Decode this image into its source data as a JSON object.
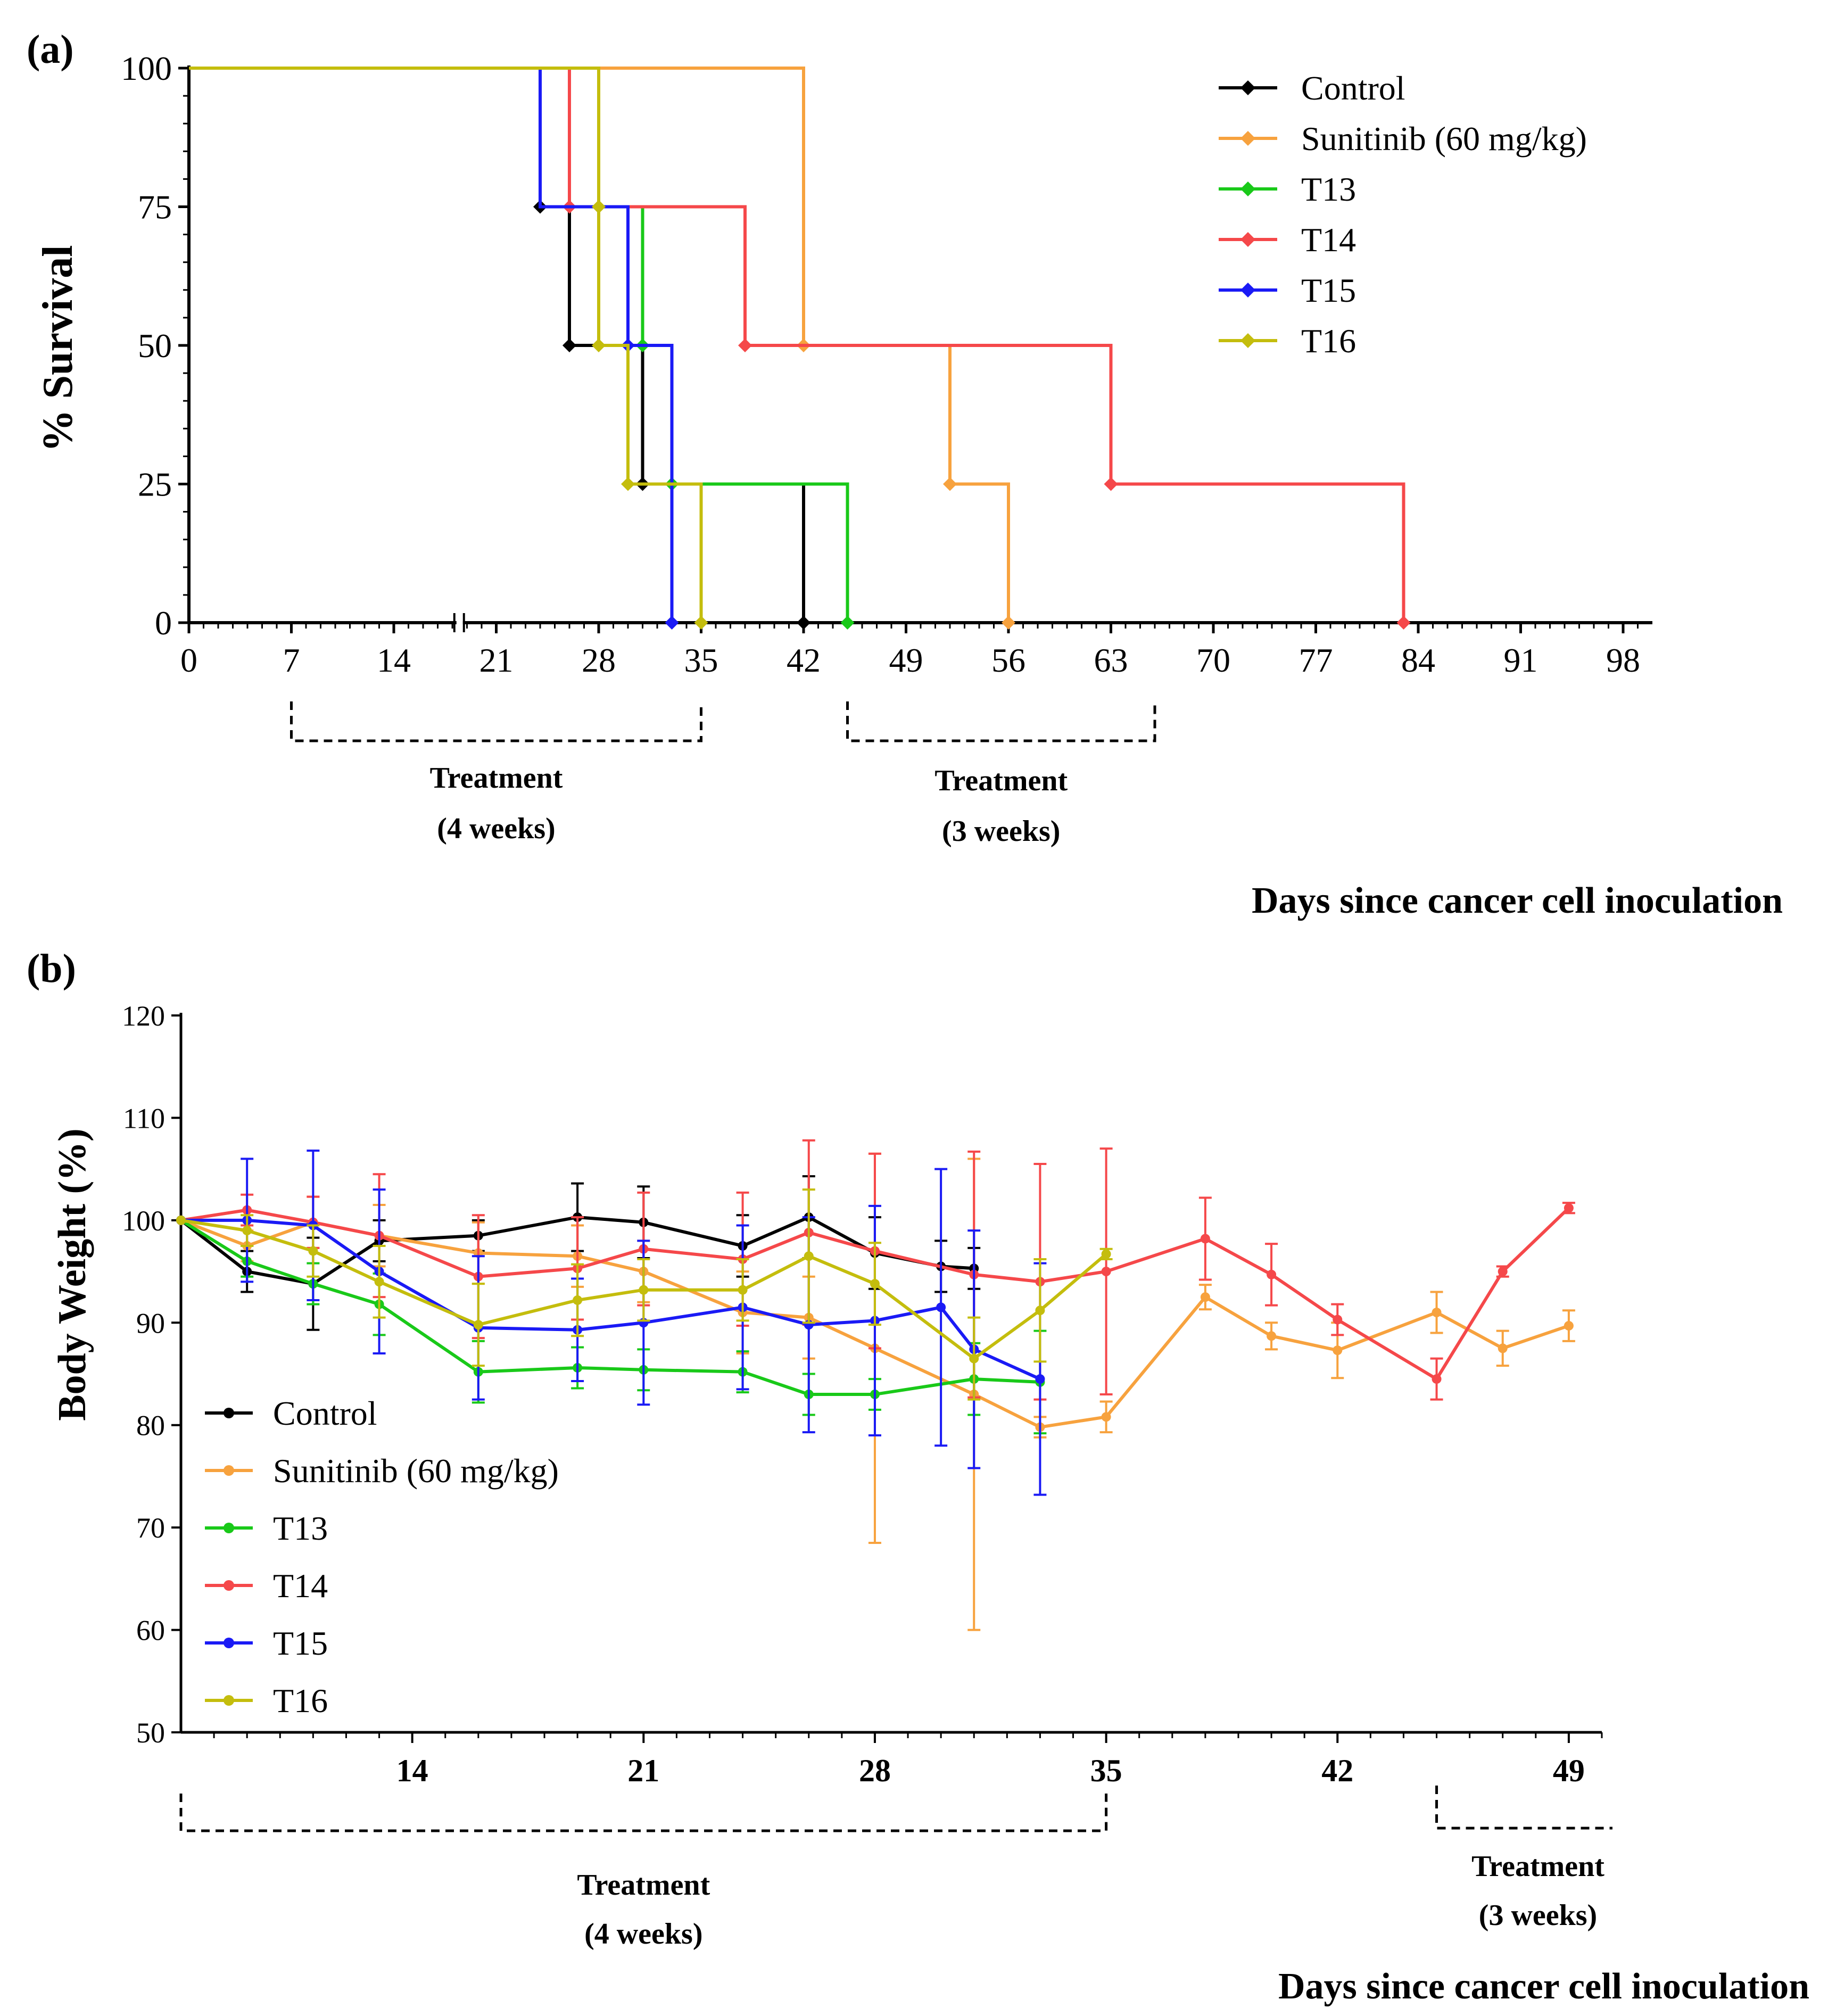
{
  "chart_data": [
    {
      "panel": "(a)",
      "type": "line",
      "subtype": "kaplan-meier survival",
      "title": "",
      "xlabel": "Days since cancer cell inoculation",
      "ylabel": "% Survival",
      "xlim": [
        0,
        100
      ],
      "ylim": [
        0,
        100
      ],
      "x_ticks": [
        0,
        7,
        14,
        21,
        28,
        35,
        42,
        49,
        56,
        63,
        70,
        77,
        84,
        91,
        98
      ],
      "y_ticks": [
        0,
        25,
        50,
        75,
        100
      ],
      "legend_position": "top-right",
      "series": [
        {
          "name": "Control",
          "color": "#000000",
          "steps": [
            [
              0,
              100
            ],
            [
              24,
              75
            ],
            [
              26,
              50
            ],
            [
              31,
              25
            ],
            [
              42,
              0
            ]
          ],
          "markers": [
            [
              24,
              75
            ],
            [
              26,
              50
            ],
            [
              31,
              25
            ],
            [
              42,
              0
            ]
          ]
        },
        {
          "name": "Sunitinib (60 mg/kg)",
          "color": "#f7a23e",
          "steps": [
            [
              0,
              100
            ],
            [
              42,
              50
            ],
            [
              52,
              25
            ],
            [
              56,
              0
            ]
          ],
          "markers": [
            [
              42,
              50
            ],
            [
              52,
              25
            ],
            [
              56,
              0
            ]
          ]
        },
        {
          "name": "T13",
          "color": "#19c919",
          "steps": [
            [
              0,
              100
            ],
            [
              24,
              75
            ],
            [
              31,
              50
            ],
            [
              33,
              25
            ],
            [
              45,
              0
            ]
          ],
          "markers": [
            [
              31,
              50
            ],
            [
              33,
              25
            ],
            [
              45,
              0
            ]
          ]
        },
        {
          "name": "T14",
          "color": "#f5484a",
          "steps": [
            [
              0,
              100
            ],
            [
              26,
              75
            ],
            [
              38,
              50
            ],
            [
              63,
              25
            ],
            [
              83,
              0
            ]
          ],
          "markers": [
            [
              26,
              75
            ],
            [
              38,
              50
            ],
            [
              63,
              25
            ],
            [
              83,
              0
            ]
          ]
        },
        {
          "name": "T15",
          "color": "#1a1af5",
          "steps": [
            [
              0,
              100
            ],
            [
              24,
              75
            ],
            [
              30,
              50
            ],
            [
              33,
              0
            ]
          ],
          "markers": [
            [
              30,
              50
            ],
            [
              33,
              0
            ]
          ]
        },
        {
          "name": "T16",
          "color": "#c4bd0d",
          "steps": [
            [
              0,
              100
            ],
            [
              28,
              50
            ],
            [
              30,
              25
            ],
            [
              35,
              0
            ]
          ],
          "markers": [
            [
              28,
              75
            ],
            [
              28,
              50
            ],
            [
              30,
              25
            ],
            [
              35,
              0
            ]
          ]
        }
      ],
      "treatment_periods": [
        {
          "line1": "Treatment",
          "line2": "(4 weeks)",
          "start": 7,
          "end": 35
        },
        {
          "line1": "Treatment",
          "line2": "(3 weeks)",
          "start": 45,
          "end": 66
        }
      ]
    },
    {
      "panel": "(b)",
      "type": "line",
      "title": "",
      "xlabel": "Days since cancer cell inoculation",
      "ylabel": "Body Weight (%)",
      "xlim": [
        7,
        50
      ],
      "ylim": [
        50,
        120
      ],
      "x_ticks": [
        14,
        21,
        28,
        35,
        42,
        49
      ],
      "y_ticks": [
        50,
        60,
        70,
        80,
        90,
        100,
        110,
        120
      ],
      "legend_position": "bottom-left",
      "series": [
        {
          "name": "Control",
          "color": "#000000",
          "x": [
            7,
            9,
            11,
            13,
            16,
            19,
            21,
            24,
            26,
            28,
            30,
            31
          ],
          "y": [
            100,
            95,
            93.8,
            98,
            98.5,
            100.3,
            99.8,
            97.5,
            100.3,
            96.8,
            95.5,
            95.3
          ],
          "err": [
            0,
            2,
            4.5,
            2,
            1.5,
            3.3,
            3.5,
            3,
            4,
            3.5,
            2.5,
            2
          ]
        },
        {
          "name": "Sunitinib (60 mg/kg)",
          "color": "#f7a23e",
          "x": [
            7,
            9,
            11,
            13,
            16,
            19,
            21,
            24,
            26,
            28,
            31,
            33,
            35,
            38,
            40,
            42,
            45,
            47,
            49
          ],
          "y": [
            100,
            97.5,
            99.8,
            98.5,
            96.8,
            96.5,
            95,
            91,
            90.5,
            87.5,
            83,
            79.8,
            80.8,
            92.5,
            88.7,
            87.3,
            91,
            87.5,
            89.7
          ],
          "err": [
            0,
            1.5,
            2.5,
            3,
            3,
            3,
            3,
            4,
            4,
            19,
            23,
            1,
            1.5,
            1.2,
            1.3,
            2.7,
            2,
            1.7,
            1.5
          ]
        },
        {
          "name": "T13",
          "color": "#19c919",
          "x": [
            7,
            9,
            11,
            13,
            16,
            19,
            21,
            24,
            26,
            28,
            31,
            33
          ],
          "y": [
            100,
            96,
            93.8,
            91.8,
            85.2,
            85.6,
            85.4,
            85.2,
            83,
            83,
            84.5,
            84.2
          ],
          "err": [
            0,
            1.5,
            2,
            3,
            3,
            2,
            2,
            2,
            2,
            1.5,
            3.5,
            5
          ]
        },
        {
          "name": "T14",
          "color": "#f5484a",
          "x": [
            7,
            9,
            11,
            13,
            16,
            19,
            21,
            24,
            26,
            28,
            31,
            33,
            35,
            38,
            40,
            42,
            45,
            47,
            49
          ],
          "y": [
            100,
            101,
            99.8,
            98.5,
            94.5,
            95.3,
            97.2,
            96.2,
            98.8,
            97,
            94.7,
            94,
            95,
            98.2,
            94.7,
            90.3,
            84.5,
            95,
            101.2
          ],
          "err": [
            0,
            1.5,
            2.5,
            6,
            6,
            5,
            5.5,
            6.5,
            9,
            9.5,
            12,
            11.5,
            12,
            4,
            3,
            1.5,
            2,
            0.5,
            0.5
          ]
        },
        {
          "name": "T15",
          "color": "#1a1af5",
          "x": [
            7,
            9,
            11,
            13,
            16,
            19,
            21,
            24,
            26,
            28,
            30,
            31,
            33
          ],
          "y": [
            100,
            100,
            99.5,
            95,
            89.5,
            89.3,
            90,
            91.5,
            89.8,
            90.2,
            91.5,
            87.4,
            84.5
          ],
          "err": [
            0,
            6,
            7.3,
            8,
            7,
            5,
            8,
            8,
            10.5,
            11.2,
            13.5,
            11.6,
            11.3
          ]
        },
        {
          "name": "T16",
          "color": "#c4bd0d",
          "x": [
            7,
            9,
            11,
            13,
            16,
            19,
            21,
            24,
            26,
            28,
            31,
            33,
            35
          ],
          "y": [
            100,
            99,
            97,
            94,
            89.8,
            92.2,
            93.2,
            93.2,
            96.5,
            93.8,
            86.5,
            91.2,
            96.7
          ],
          "err": [
            0,
            1.5,
            2.5,
            3.5,
            4,
            3.5,
            3,
            3,
            6.5,
            4,
            4,
            5,
            0.5
          ]
        }
      ],
      "treatment_periods": [
        {
          "line1": "Treatment",
          "line2": "(4 weeks)",
          "start": 7,
          "end": 35
        },
        {
          "line1": "Treatment",
          "line2": "(3 weeks)",
          "start": 45,
          "end": 50
        }
      ]
    }
  ],
  "panel_labels": {
    "a": "(a)",
    "b": "(b)"
  }
}
